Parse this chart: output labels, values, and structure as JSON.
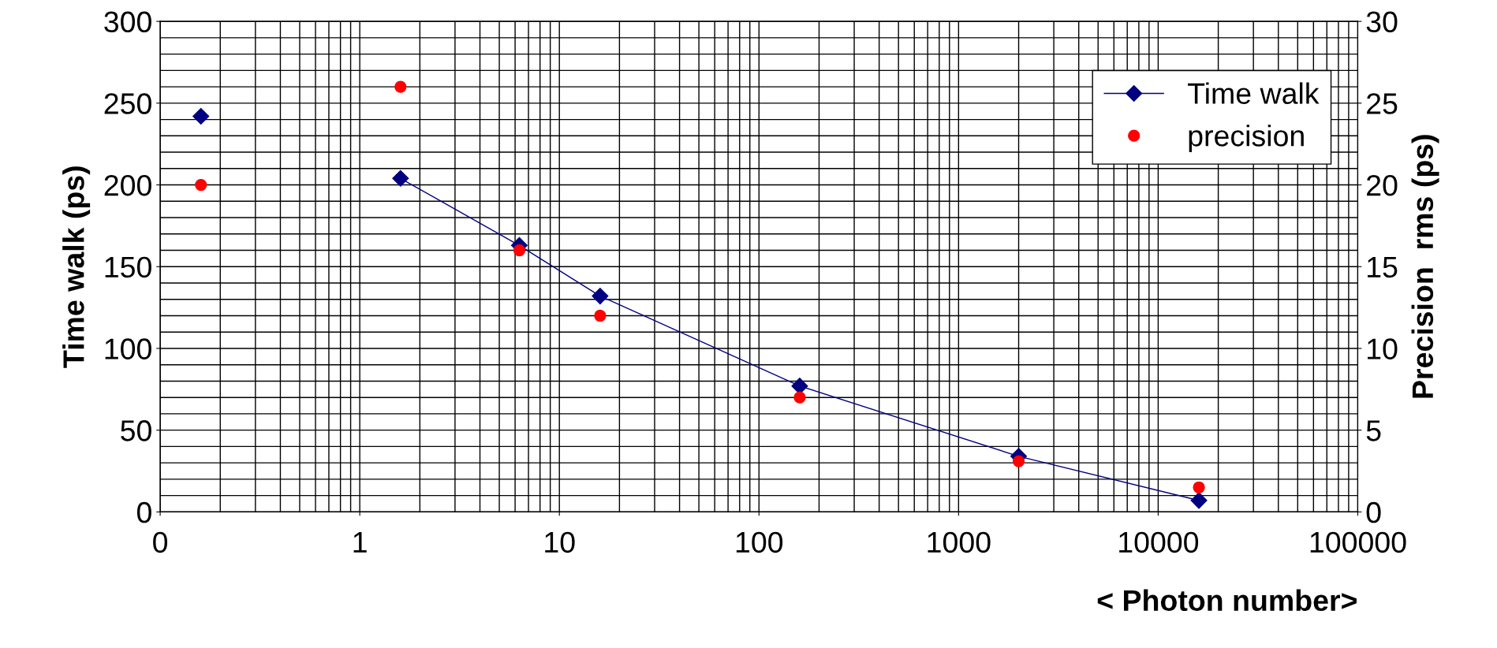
{
  "chart_data": {
    "type": "line",
    "xlabel": "< Photon number>",
    "ylabel": "Time walk (ps)",
    "y2label": "Precision  rms (ps)",
    "log": "x",
    "xlim": [
      0.1,
      100000
    ],
    "xticks": [
      {
        "value": 0.1,
        "label": "0"
      },
      1,
      10,
      100,
      1000,
      10000,
      100000
    ],
    "ylim": [
      0,
      300
    ],
    "yticks": [
      0,
      50,
      100,
      150,
      200,
      250,
      300
    ],
    "y2lim": [
      0,
      30
    ],
    "y2ticks": [
      0,
      5,
      10,
      15,
      20,
      25,
      30
    ],
    "grid": true,
    "legend": "top right",
    "series": [
      {
        "type": "scatter",
        "color": "#000080",
        "marker": "diamond",
        "x": [
          0.16
        ],
        "values": [
          242
        ]
      },
      {
        "name": "Time walk",
        "color": "#000080",
        "marker": "diamond",
        "line_style": "solid",
        "x": [
          1.6,
          6.3,
          16,
          160,
          2000,
          16000
        ],
        "values": [
          204,
          163,
          132,
          77,
          34,
          7
        ]
      },
      {
        "name": "precision",
        "type": "scatter",
        "color": "#ff0000",
        "marker": "circle",
        "axis": "y2",
        "x": [
          0.16,
          1.6,
          6.3,
          16,
          160,
          2000,
          16000
        ],
        "values": [
          20,
          26,
          16,
          12,
          7,
          3.1,
          1.5
        ]
      }
    ]
  }
}
